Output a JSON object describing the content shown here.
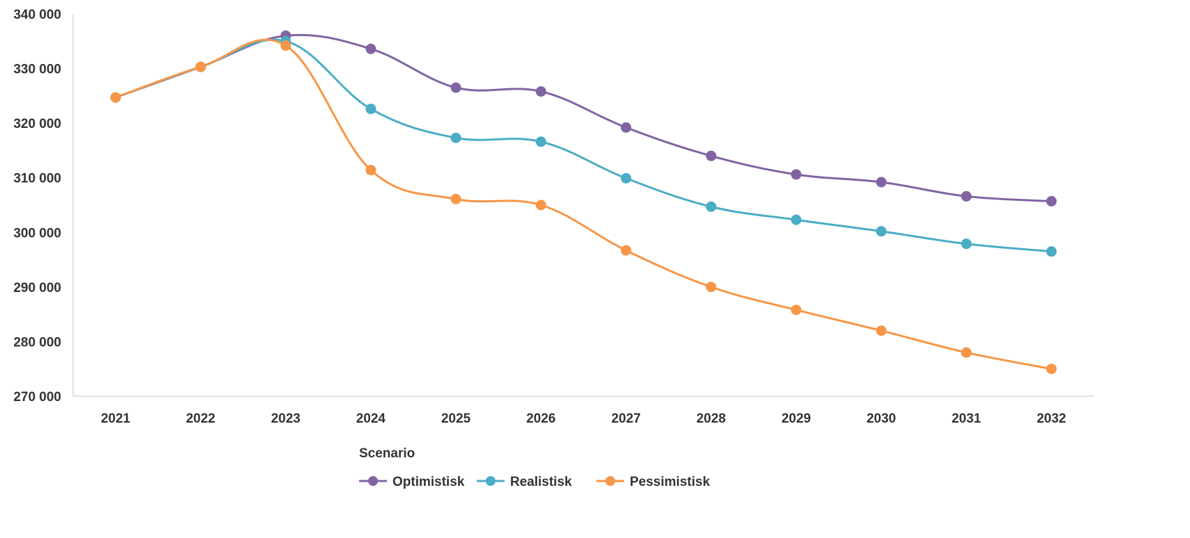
{
  "chart_data": {
    "type": "line",
    "x": [
      "2021",
      "2022",
      "2023",
      "2024",
      "2025",
      "2026",
      "2027",
      "2028",
      "2029",
      "2030",
      "2031",
      "2032"
    ],
    "ylim": [
      270000,
      340000
    ],
    "yticks": [
      270000,
      280000,
      290000,
      300000,
      310000,
      320000,
      330000,
      340000
    ],
    "ytick_labels": [
      "270 000",
      "280 000",
      "290 000",
      "300 000",
      "310 000",
      "320 000",
      "330 000",
      "340 000"
    ],
    "grid": false,
    "smooth": true,
    "legend": {
      "title": "Scenario",
      "placement": "bottom-center"
    },
    "series": [
      {
        "name": "Optimistisk",
        "color": "#8064A2",
        "values": [
          324700,
          330300,
          336000,
          333600,
          326500,
          325800,
          319200,
          314000,
          310600,
          309200,
          306600,
          305700
        ]
      },
      {
        "name": "Realistisk",
        "color": "#4BACC6",
        "values": [
          324700,
          330300,
          335000,
          322600,
          317300,
          316600,
          309900,
          304700,
          302300,
          300200,
          297900,
          296500
        ]
      },
      {
        "name": "Pessimistisk",
        "color": "#F79646",
        "values": [
          324700,
          330300,
          334200,
          311400,
          306100,
          305000,
          296700,
          290000,
          285800,
          282000,
          278000,
          275000
        ]
      }
    ]
  }
}
